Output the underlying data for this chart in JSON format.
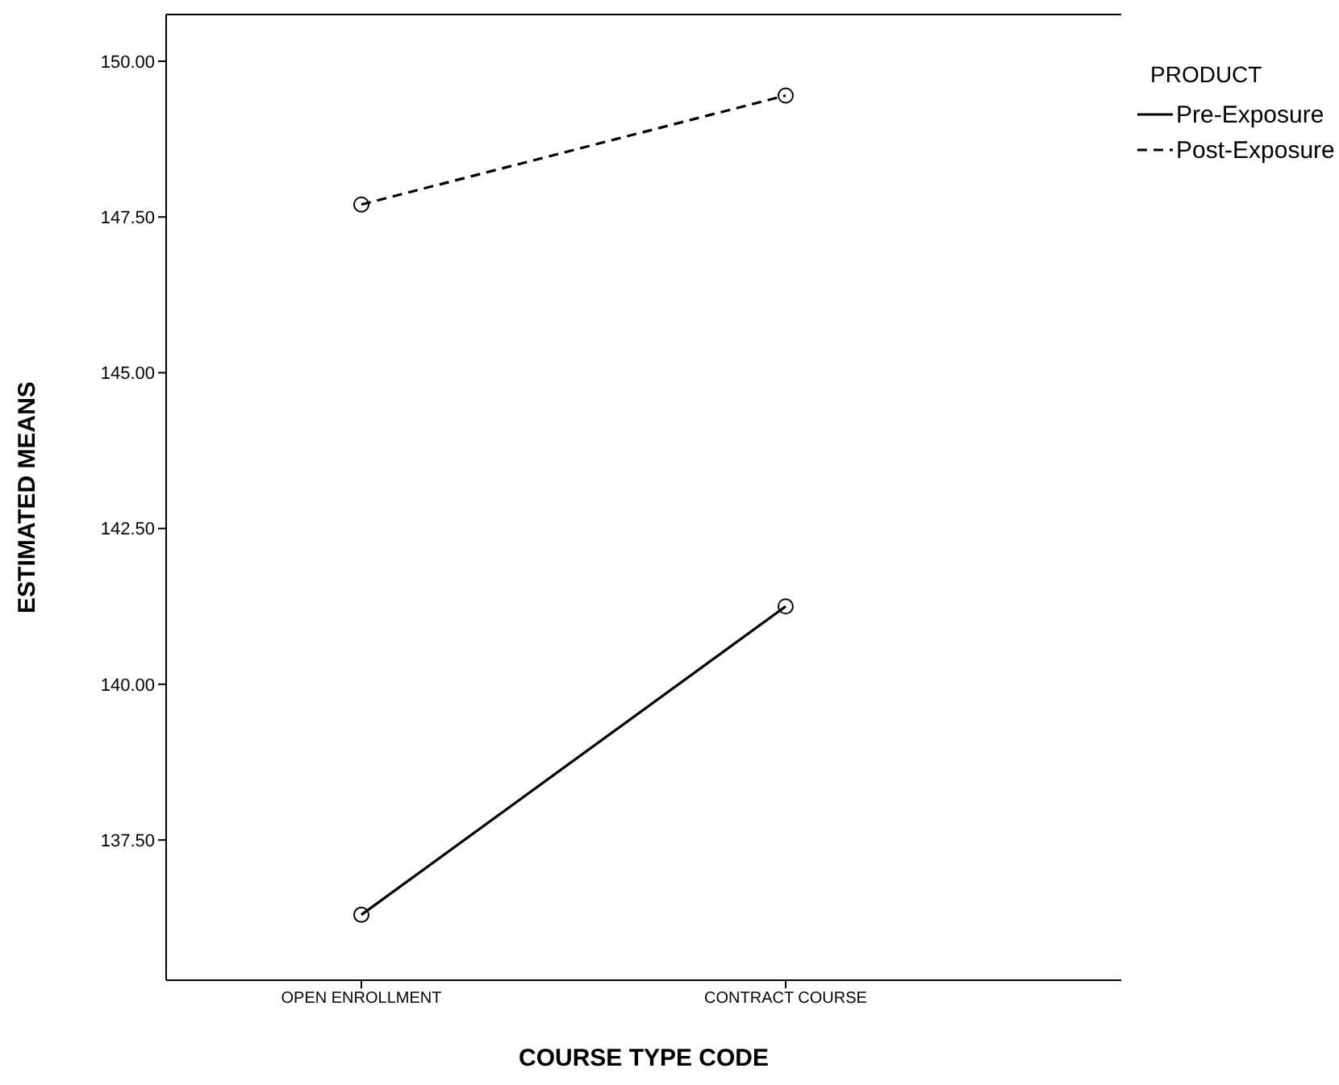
{
  "chart_data": {
    "type": "line",
    "xlabel": "COURSE TYPE CODE",
    "ylabel": "ESTIMATED MEANS",
    "legend_title": "PRODUCT",
    "legend": "top right",
    "marker": "circle",
    "grid": false,
    "categories": [
      "OPEN ENROLLMENT",
      "CONTRACT COURSE"
    ],
    "ylim": [
      135.25,
      150.75
    ],
    "yticks": [
      {
        "value": 137.5,
        "label": "137.50"
      },
      {
        "value": 140,
        "label": "140.00"
      },
      {
        "value": 142.5,
        "label": "142.50"
      },
      {
        "value": 145,
        "label": "145.00"
      },
      {
        "value": 147.5,
        "label": "147.50"
      },
      {
        "value": 150,
        "label": "150.00"
      }
    ],
    "series": [
      {
        "name": "Pre-Exposure",
        "color": "#000000",
        "line_style": "solid",
        "values": [
          136.3,
          141.25
        ]
      },
      {
        "name": "Post-Exposure",
        "color": "#000000",
        "line_style": "dashed",
        "values": [
          147.7,
          149.45
        ]
      }
    ]
  }
}
